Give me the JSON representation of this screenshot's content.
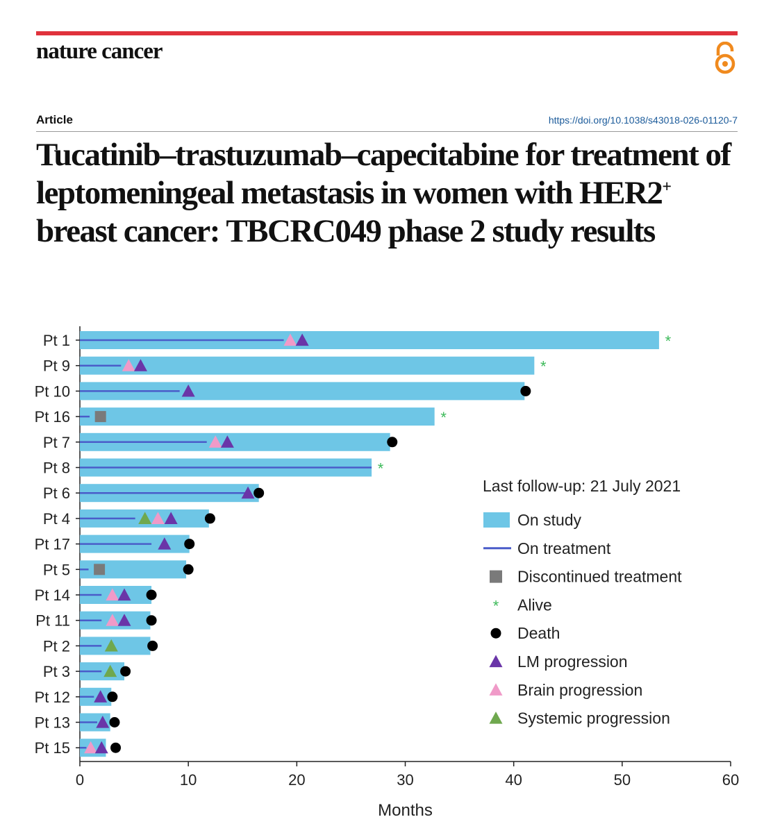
{
  "header": {
    "journal": "nature cancer",
    "article_label": "Article",
    "doi": "https://doi.org/10.1038/s43018-026-01120-7",
    "title_part1": "Tucatinib–trastuzumab–capecitabine for treatment of leptomeningeal metastasis in women with HER2",
    "title_sup": "+",
    "title_part2": " breast cancer: TBCRC049 phase 2 study results",
    "accent_color": "#e0323c"
  },
  "chart_data": {
    "type": "swimmer",
    "xlabel": "Months",
    "xlim": [
      0,
      60
    ],
    "xticks": [
      0,
      10,
      20,
      30,
      40,
      50,
      60
    ],
    "legend": {
      "title": "Last follow-up: 21 July 2021",
      "placement": "right",
      "items": [
        {
          "key": "on_study",
          "label": "On study"
        },
        {
          "key": "on_treatment",
          "label": "On treatment"
        },
        {
          "key": "discontinued",
          "label": "Discontinued treatment"
        },
        {
          "key": "alive",
          "label": "Alive"
        },
        {
          "key": "death",
          "label": "Death"
        },
        {
          "key": "lm",
          "label": "LM progression"
        },
        {
          "key": "brain",
          "label": "Brain progression"
        },
        {
          "key": "systemic",
          "label": "Systemic progression"
        }
      ]
    },
    "colors": {
      "on_study": "#6ec6e6",
      "on_treatment": "#4a5cc9",
      "discontinued": "#7a7a7a",
      "alive": "#3dba5a",
      "death": "#000000",
      "lm": "#6a35a8",
      "brain": "#f09ac8",
      "systemic": "#6fa84e"
    },
    "patients": [
      {
        "label": "Pt 1",
        "study": 53.4,
        "treatment": 18.8,
        "outcome": "alive",
        "events": [
          {
            "type": "brain",
            "t": 19.4
          },
          {
            "type": "lm",
            "t": 20.5
          }
        ]
      },
      {
        "label": "Pt 9",
        "study": 41.9,
        "treatment": 3.8,
        "outcome": "alive",
        "events": [
          {
            "type": "brain",
            "t": 4.5
          },
          {
            "type": "lm",
            "t": 5.6
          }
        ]
      },
      {
        "label": "Pt 10",
        "study": 41.0,
        "treatment": 9.2,
        "outcome": "death",
        "outcome_t": 41.1,
        "events": [
          {
            "type": "lm",
            "t": 10.0
          }
        ]
      },
      {
        "label": "Pt 16",
        "study": 32.7,
        "treatment": 0.9,
        "outcome": "alive",
        "discontinued_t": 1.9,
        "events": []
      },
      {
        "label": "Pt 7",
        "study": 28.6,
        "treatment": 11.7,
        "outcome": "death",
        "outcome_t": 28.8,
        "events": [
          {
            "type": "brain",
            "t": 12.5
          },
          {
            "type": "lm",
            "t": 13.6
          }
        ]
      },
      {
        "label": "Pt 8",
        "study": 26.9,
        "treatment": 26.9,
        "outcome": "alive",
        "events": []
      },
      {
        "label": "Pt 6",
        "study": 16.5,
        "treatment": 15.3,
        "outcome": "death",
        "outcome_t": 16.5,
        "events": [
          {
            "type": "lm",
            "t": 15.5
          }
        ]
      },
      {
        "label": "Pt 4",
        "study": 11.9,
        "treatment": 5.1,
        "outcome": "death",
        "outcome_t": 12.0,
        "events": [
          {
            "type": "systemic",
            "t": 6.0
          },
          {
            "type": "brain",
            "t": 7.2
          },
          {
            "type": "lm",
            "t": 8.4
          }
        ]
      },
      {
        "label": "Pt 17",
        "study": 10.1,
        "treatment": 6.6,
        "outcome": "death",
        "outcome_t": 10.1,
        "events": [
          {
            "type": "lm",
            "t": 7.8
          }
        ]
      },
      {
        "label": "Pt 5",
        "study": 9.8,
        "treatment": 0.8,
        "outcome": "death",
        "outcome_t": 10.0,
        "discontinued_t": 1.8,
        "events": []
      },
      {
        "label": "Pt 14",
        "study": 6.6,
        "treatment": 2.0,
        "outcome": "death",
        "outcome_t": 6.6,
        "events": [
          {
            "type": "brain",
            "t": 3.0
          },
          {
            "type": "lm",
            "t": 4.1
          }
        ]
      },
      {
        "label": "Pt 11",
        "study": 6.5,
        "treatment": 2.0,
        "outcome": "death",
        "outcome_t": 6.6,
        "events": [
          {
            "type": "brain",
            "t": 3.0
          },
          {
            "type": "lm",
            "t": 4.1
          }
        ]
      },
      {
        "label": "Pt 2",
        "study": 6.5,
        "treatment": 2.0,
        "outcome": "death",
        "outcome_t": 6.7,
        "events": [
          {
            "type": "systemic",
            "t": 2.9
          }
        ]
      },
      {
        "label": "Pt 3",
        "study": 4.1,
        "treatment": 2.0,
        "outcome": "death",
        "outcome_t": 4.2,
        "events": [
          {
            "type": "systemic",
            "t": 2.8
          }
        ]
      },
      {
        "label": "Pt 12",
        "study": 2.9,
        "treatment": 1.3,
        "outcome": "death",
        "outcome_t": 3.0,
        "events": [
          {
            "type": "lm",
            "t": 1.9
          }
        ]
      },
      {
        "label": "Pt 13",
        "study": 2.8,
        "treatment": 1.6,
        "outcome": "death",
        "outcome_t": 3.2,
        "events": [
          {
            "type": "lm",
            "t": 2.1
          }
        ]
      },
      {
        "label": "Pt 15",
        "study": 2.4,
        "treatment": 0.6,
        "outcome": "death",
        "outcome_t": 3.3,
        "events": [
          {
            "type": "brain",
            "t": 1.0
          },
          {
            "type": "lm",
            "t": 2.0
          }
        ]
      }
    ]
  }
}
